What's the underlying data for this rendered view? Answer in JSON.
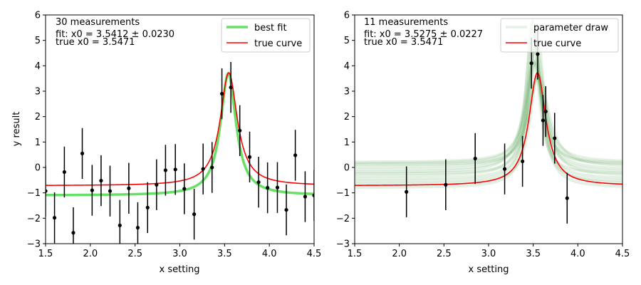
{
  "chart_data": [
    {
      "type": "scatter",
      "xlabel": "x setting",
      "ylabel": "y result",
      "xlim": [
        1.5,
        4.5
      ],
      "ylim": [
        -3,
        6
      ],
      "xticks": [
        "1.5",
        "2.0",
        "2.5",
        "3.0",
        "3.5",
        "4.0",
        "4.5"
      ],
      "yticks": [
        "−3",
        "−2",
        "−1",
        "0",
        "1",
        "2",
        "3",
        "4",
        "5",
        "6"
      ],
      "grid": false,
      "annotations": [
        "30 measurements",
        "fit: x0 = 3.5412 ± 0.0230",
        "true x0 = 3.5471"
      ],
      "legend": {
        "position": "top-right",
        "entries": [
          {
            "label": "best fit",
            "color": "#66e066"
          },
          {
            "label": "true curve",
            "color": "#ff0000"
          }
        ]
      },
      "points": {
        "x": [
          1.5,
          1.6,
          1.71,
          1.81,
          1.91,
          2.02,
          2.12,
          2.22,
          2.33,
          2.43,
          2.53,
          2.64,
          2.74,
          2.84,
          2.95,
          3.05,
          3.16,
          3.26,
          3.36,
          3.47,
          3.57,
          3.67,
          3.78,
          3.88,
          3.98,
          4.09,
          4.19,
          4.29,
          4.4,
          4.5
        ],
        "y": [
          -0.93,
          -1.98,
          -0.18,
          -2.57,
          0.55,
          -0.9,
          -0.52,
          -0.93,
          -2.28,
          -0.82,
          -2.37,
          -1.58,
          -0.68,
          -0.11,
          -0.08,
          -0.84,
          -1.84,
          -0.06,
          0.0,
          2.9,
          3.15,
          1.45,
          0.41,
          -0.58,
          -0.8,
          -0.79,
          -1.67,
          0.48,
          -1.15,
          -1.1
        ],
        "yerr": 1.0
      },
      "series": [
        {
          "name": "best fit",
          "color": "#66e066",
          "x0": 3.5412,
          "amplitude": 4.8,
          "width": 0.105,
          "baseline": -1.1
        },
        {
          "name": "true curve",
          "color": "#ff0000",
          "x0": 3.5471,
          "amplitude": 4.45,
          "width": 0.115,
          "baseline": -0.72
        }
      ]
    },
    {
      "type": "scatter",
      "xlabel": "x setting",
      "ylabel": "",
      "xlim": [
        1.5,
        4.5
      ],
      "ylim": [
        -3,
        6
      ],
      "xticks": [
        "1.5",
        "2.0",
        "2.5",
        "3.0",
        "3.5",
        "4.0",
        "4.5"
      ],
      "yticks": [
        "−3",
        "−2",
        "−1",
        "0",
        "1",
        "2",
        "3",
        "4",
        "5",
        "6"
      ],
      "grid": false,
      "annotations": [
        "11 measurements",
        "fit: x0 = 3.5275 ± 0.0227",
        "true x0 = 3.5471"
      ],
      "legend": {
        "position": "top-right",
        "entries": [
          {
            "label": "parameter draw",
            "color": "#2e8b2e"
          },
          {
            "label": "true curve",
            "color": "#ff0000"
          }
        ]
      },
      "points": {
        "x": [
          2.08,
          2.52,
          2.85,
          3.18,
          3.38,
          3.48,
          3.55,
          3.61,
          3.64,
          3.74,
          3.88
        ],
        "y": [
          -0.96,
          -0.68,
          0.35,
          -0.06,
          0.24,
          4.1,
          4.46,
          1.85,
          2.2,
          1.15,
          -1.21
        ],
        "yerr": 1.0
      },
      "draws": [
        {
          "x0": 3.49,
          "amplitude": 6.0,
          "width": 0.08,
          "baseline": -0.25
        },
        {
          "x0": 3.5,
          "amplitude": 5.6,
          "width": 0.09,
          "baseline": 0.15
        },
        {
          "x0": 3.51,
          "amplitude": 5.9,
          "width": 0.085,
          "baseline": -0.55
        },
        {
          "x0": 3.52,
          "amplitude": 4.2,
          "width": 0.12,
          "baseline": -0.1
        },
        {
          "x0": 3.53,
          "amplitude": 5.0,
          "width": 0.1,
          "baseline": -0.8
        },
        {
          "x0": 3.53,
          "amplitude": 4.6,
          "width": 0.11,
          "baseline": 0.2
        },
        {
          "x0": 3.54,
          "amplitude": 3.9,
          "width": 0.13,
          "baseline": -0.35
        },
        {
          "x0": 3.55,
          "amplitude": 4.3,
          "width": 0.105,
          "baseline": -0.65
        },
        {
          "x0": 3.56,
          "amplitude": 3.6,
          "width": 0.14,
          "baseline": 0.0
        },
        {
          "x0": 3.52,
          "amplitude": 5.2,
          "width": 0.095,
          "baseline": -0.45
        },
        {
          "x0": 3.5,
          "amplitude": 4.4,
          "width": 0.12,
          "baseline": -0.2
        },
        {
          "x0": 3.54,
          "amplitude": 5.4,
          "width": 0.09,
          "baseline": 0.1
        }
      ],
      "series": [
        {
          "name": "true curve",
          "color": "#ff0000",
          "x0": 3.5471,
          "amplitude": 4.45,
          "width": 0.115,
          "baseline": -0.72
        }
      ]
    }
  ]
}
